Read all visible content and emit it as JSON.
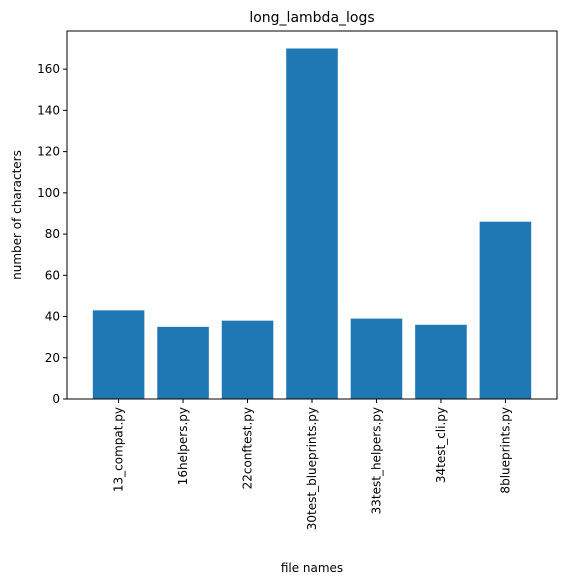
{
  "chart_data": {
    "type": "bar",
    "title": "long_lambda_logs",
    "xlabel": "file names",
    "ylabel": "number of characters",
    "categories": [
      "13_compat.py",
      "16helpers.py",
      "22conftest.py",
      "30test_blueprints.py",
      "33test_helpers.py",
      "34test_cli.py",
      "8blueprints.py"
    ],
    "values": [
      43,
      35,
      38,
      170,
      39,
      36,
      86
    ],
    "ylim": [
      0,
      178.5
    ],
    "yticks": [
      "0",
      "20",
      "40",
      "60",
      "80",
      "100",
      "120",
      "140",
      "160"
    ],
    "grid": false,
    "legend": "none",
    "bar_color": "#1f77b4"
  }
}
